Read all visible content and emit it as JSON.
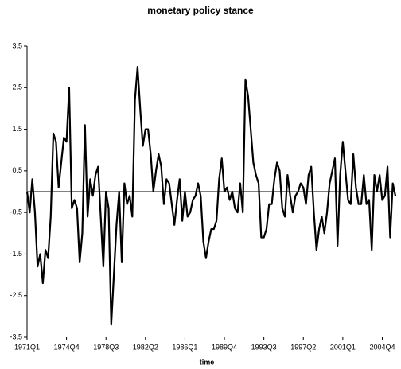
{
  "chart_data": {
    "type": "line",
    "title": "monetary policy stance",
    "x_label": "time",
    "categories": [
      "1971Q1",
      null,
      null,
      null,
      null,
      null,
      null,
      null,
      null,
      null,
      null,
      null,
      null,
      null,
      null,
      "1974Q4",
      null,
      null,
      null,
      null,
      null,
      null,
      null,
      null,
      null,
      null,
      null,
      null,
      null,
      null,
      "1978Q3",
      null,
      null,
      null,
      null,
      null,
      null,
      null,
      null,
      null,
      null,
      null,
      null,
      null,
      null,
      "1982Q2",
      null,
      null,
      null,
      null,
      null,
      null,
      null,
      null,
      null,
      null,
      null,
      null,
      null,
      null,
      "1986Q1",
      null,
      null,
      null,
      null,
      null,
      null,
      null,
      null,
      null,
      null,
      null,
      null,
      null,
      null,
      "1989Q4",
      null,
      null,
      null,
      null,
      null,
      null,
      null,
      null,
      null,
      null,
      null,
      null,
      null,
      null,
      "1993Q3",
      null,
      null,
      null,
      null,
      null,
      null,
      null,
      null,
      null,
      null,
      null,
      null,
      null,
      null,
      "1997Q2",
      null,
      null,
      null,
      null,
      null,
      null,
      null,
      null,
      null,
      null,
      null,
      null,
      null,
      null,
      "2001Q1",
      null,
      null,
      null,
      null,
      null,
      null,
      null,
      null,
      null,
      null,
      null,
      null,
      null,
      null,
      "2004Q4",
      null,
      null,
      null,
      null,
      null
    ],
    "values": [
      0.0,
      -0.5,
      0.3,
      -0.5,
      -1.8,
      -1.5,
      -2.2,
      -1.4,
      -1.6,
      -0.6,
      1.4,
      1.2,
      0.1,
      0.7,
      1.3,
      1.2,
      2.5,
      -0.4,
      -0.2,
      -0.4,
      -1.7,
      -1.0,
      1.6,
      -0.6,
      0.3,
      -0.1,
      0.4,
      0.6,
      -0.6,
      -1.8,
      0.0,
      -0.4,
      -3.2,
      -2.0,
      -0.8,
      0.0,
      -1.7,
      0.2,
      -0.3,
      -0.1,
      -0.6,
      2.2,
      3.0,
      2.0,
      1.1,
      1.5,
      1.5,
      0.9,
      0.0,
      0.5,
      0.9,
      0.6,
      -0.3,
      0.3,
      0.2,
      -0.3,
      -0.8,
      -0.2,
      0.3,
      -0.7,
      0.0,
      -0.6,
      -0.5,
      -0.2,
      -0.1,
      0.2,
      -0.1,
      -1.2,
      -1.6,
      -1.2,
      -0.9,
      -0.9,
      -0.7,
      0.3,
      0.8,
      0.0,
      0.1,
      -0.2,
      0.0,
      -0.4,
      -0.5,
      0.2,
      -0.5,
      2.7,
      2.3,
      1.5,
      0.7,
      0.4,
      0.2,
      -1.1,
      -1.1,
      -0.9,
      -0.3,
      -0.3,
      0.3,
      0.7,
      0.5,
      -0.4,
      -0.6,
      0.4,
      -0.1,
      -0.5,
      -0.1,
      0.0,
      0.2,
      0.1,
      -0.3,
      0.4,
      0.6,
      -0.5,
      -1.4,
      -0.9,
      -0.6,
      -1.0,
      -0.5,
      0.2,
      0.5,
      0.8,
      -1.3,
      0.4,
      1.2,
      0.5,
      -0.2,
      -0.3,
      0.9,
      0.1,
      -0.3,
      -0.3,
      0.4,
      -0.3,
      -0.2,
      -1.4,
      0.4,
      0.0,
      0.4,
      -0.2,
      -0.1,
      0.6,
      -1.1,
      0.2,
      -0.1
    ],
    "color": "#000000",
    "ylim": [
      -3.5,
      3.5
    ],
    "yticks": [
      -3.5,
      -2.5,
      -1.5,
      -0.5,
      0.5,
      1.5,
      2.5,
      3.5
    ]
  }
}
